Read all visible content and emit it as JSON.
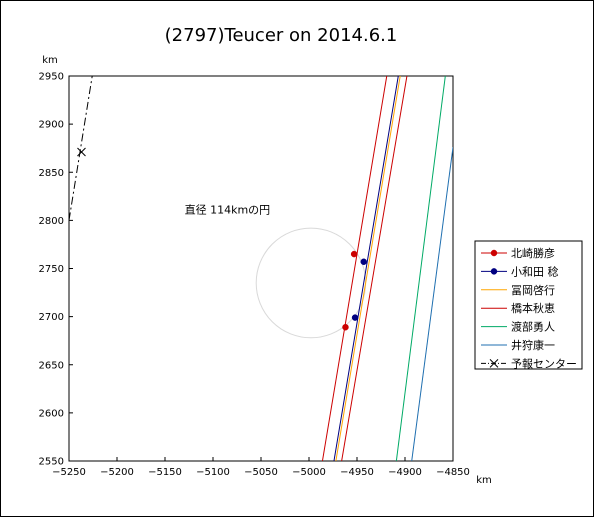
{
  "chart_data": {
    "type": "scatter",
    "title": "(2797)Teucer on 2014.6.1",
    "xlabel": "",
    "ylabel": "",
    "x_unit": "km",
    "y_unit": "km",
    "xlim": [
      -5250,
      -4850
    ],
    "ylim": [
      2550,
      2950
    ],
    "x_ticks": [
      -5250,
      -5200,
      -5150,
      -5100,
      -5050,
      -5000,
      -4950,
      -4900,
      -4850
    ],
    "y_ticks": [
      2550,
      2600,
      2650,
      2700,
      2750,
      2800,
      2850,
      2900,
      2950
    ],
    "x_tick_labels": [
      "−5250",
      "−5200",
      "−5150",
      "−5100",
      "−5050",
      "−5000",
      "−4950",
      "−4900",
      "−4850"
    ],
    "y_tick_labels": [
      "2550",
      "2600",
      "2650",
      "2700",
      "2750",
      "2800",
      "2850",
      "2900",
      "2950"
    ],
    "grid": false,
    "legend_position": "right",
    "annotation": {
      "text": "直径 114kmの円",
      "x": -5085,
      "y": 2807
    },
    "circle": {
      "cx": -4998,
      "cy": 2735,
      "r": 57,
      "color": "#d9d9d9"
    },
    "series": [
      {
        "name": "北崎勝彦",
        "color": "#cc0000",
        "style": "marker-line",
        "lines": [
          [
            [
              -4986,
              2550
            ],
            [
              -4919,
              2950
            ]
          ]
        ],
        "points": [
          [
            -4953,
            2765
          ],
          [
            -4962,
            2689
          ]
        ]
      },
      {
        "name": "小和田 稔",
        "color": "#000080",
        "style": "marker-line",
        "lines": [
          [
            [
              -4974,
              2550
            ],
            [
              -4907,
              2950
            ]
          ]
        ],
        "points": [
          [
            -4943,
            2757
          ],
          [
            -4952,
            2699
          ]
        ]
      },
      {
        "name": "冨岡啓行",
        "color": "#ffa500",
        "style": "line",
        "lines": [
          [
            [
              -4972,
              2550
            ],
            [
              -4905,
              2950
            ]
          ]
        ],
        "points": []
      },
      {
        "name": "橋本秋恵",
        "color": "#cc0000",
        "style": "line",
        "lines": [
          [
            [
              -4966,
              2550
            ],
            [
              -4898,
              2950
            ]
          ]
        ],
        "points": []
      },
      {
        "name": "渡部勇人",
        "color": "#00aa66",
        "style": "line",
        "lines": [
          [
            [
              -4909,
              2550
            ],
            [
              -4858,
              2950
            ]
          ]
        ],
        "points": []
      },
      {
        "name": "井狩康一",
        "color": "#1f6fb0",
        "style": "line",
        "lines": [
          [
            [
              -4893,
              2550
            ],
            [
              -4850,
              2876
            ]
          ]
        ],
        "points": []
      },
      {
        "name": "予報センター",
        "color": "#000000",
        "style": "dashdot-cross",
        "lines": [
          [
            [
              -5250,
              2800
            ],
            [
              -5225,
              2955
            ]
          ]
        ],
        "points": [
          [
            -5237,
            2871
          ]
        ]
      }
    ]
  }
}
